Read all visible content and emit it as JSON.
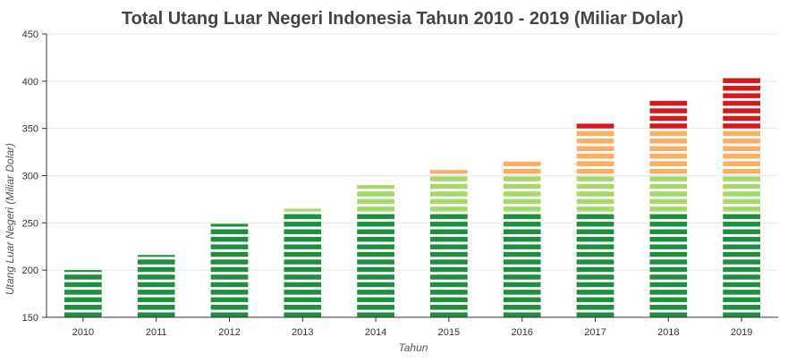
{
  "chart_data": {
    "type": "bar",
    "title": "Total Utang Luar Negeri Indonesia Tahun 2010 - 2019 (Miliar Dolar)",
    "xlabel": "Tahun",
    "ylabel": "Utang Luar Negeri (Miliar Dolar)",
    "categories": [
      "2010",
      "2011",
      "2012",
      "2013",
      "2014",
      "2015",
      "2016",
      "2017",
      "2018",
      "2019"
    ],
    "values": [
      200,
      216,
      249,
      265,
      290,
      306,
      315,
      355,
      380,
      405
    ],
    "ylim": [
      150,
      450
    ],
    "yticks": [
      150,
      200,
      250,
      300,
      350,
      400,
      450
    ],
    "grid": true,
    "color_bands": [
      {
        "from": 150,
        "to": 258,
        "color": "#1e8f3e"
      },
      {
        "from": 258,
        "to": 300,
        "color": "#a6d96a"
      },
      {
        "from": 300,
        "to": 348,
        "color": "#fdae61"
      },
      {
        "from": 348,
        "to": 450,
        "color": "#d7191c"
      }
    ]
  }
}
